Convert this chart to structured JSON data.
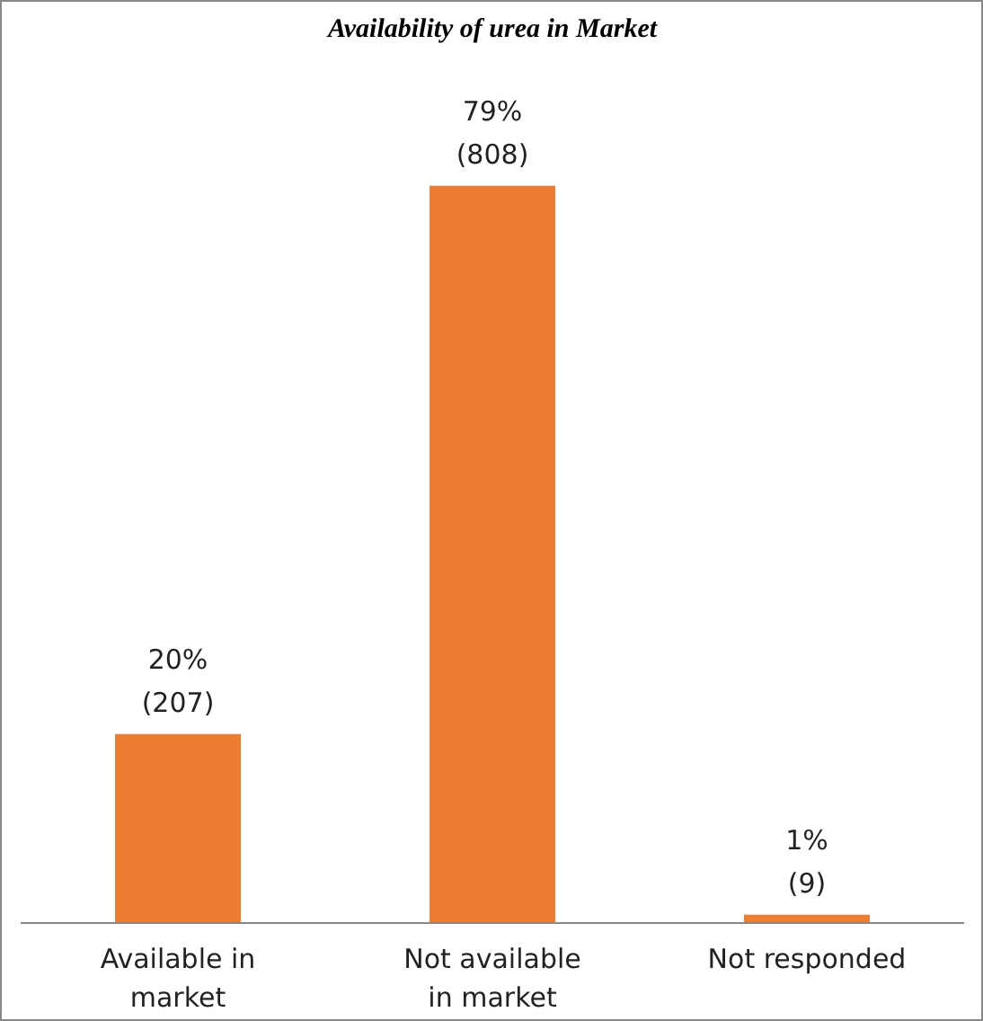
{
  "chart_data": {
    "type": "bar",
    "title": "Availability of urea in Market",
    "categories": [
      "Available in\nmarket",
      "Not available\nin market",
      "Not responded"
    ],
    "values": [
      207,
      808,
      9
    ],
    "value_labels": [
      "20%\n(207)",
      "79%\n(808)",
      "1%\n(9)"
    ],
    "color": "#ed7d31",
    "grid": false
  }
}
